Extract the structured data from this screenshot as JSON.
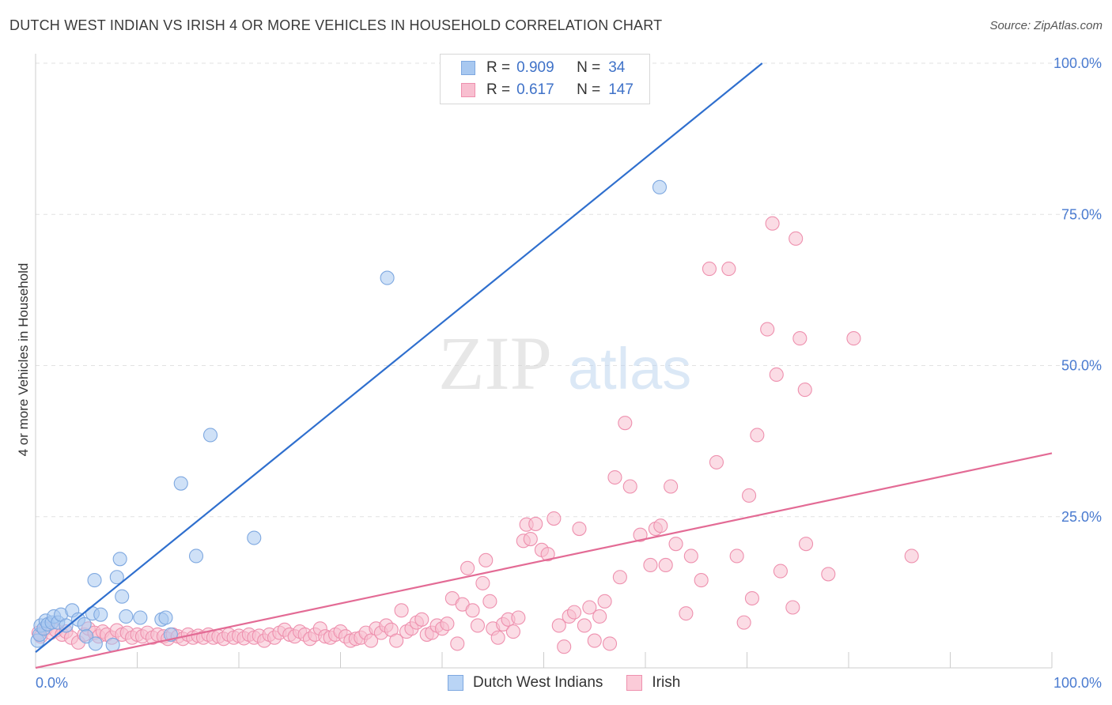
{
  "header": {
    "title": "DUTCH WEST INDIAN VS IRISH 4 OR MORE VEHICLES IN HOUSEHOLD CORRELATION CHART",
    "source": "Source: ZipAtlas.com"
  },
  "watermark": {
    "zip": "ZIP",
    "atlas": "atlas"
  },
  "legend": {
    "rows": [
      {
        "r_label": "R =",
        "r_value": "0.909",
        "n_label": "N =",
        "n_value": "34",
        "color": "#a8c8f0",
        "border": "#7ea8e0"
      },
      {
        "r_label": "R =",
        "r_value": "0.617",
        "n_label": "N =",
        "n_value": "147",
        "color": "#f8bfd0",
        "border": "#ee90ae"
      }
    ]
  },
  "bottom_legend": {
    "items": [
      {
        "label": "Dutch West Indians",
        "color": "#b9d4f5",
        "border": "#7ea8e0"
      },
      {
        "label": "Irish",
        "color": "#fbcbd8",
        "border": "#ee90ae"
      }
    ]
  },
  "chart_data": {
    "type": "scatter",
    "title": "DUTCH WEST INDIAN VS IRISH 4 OR MORE VEHICLES IN HOUSEHOLD CORRELATION CHART",
    "ylabel": "4 or more Vehicles in Household",
    "xlim": [
      0,
      100
    ],
    "ylim": [
      0,
      100
    ],
    "x_tick_labels": [
      "0.0%",
      "100.0%"
    ],
    "y_ticks": [
      25,
      50,
      75,
      100
    ],
    "y_tick_labels": [
      "25.0%",
      "50.0%",
      "75.0%",
      "100.0%"
    ],
    "grid": true,
    "series": [
      {
        "name": "Dutch West Indians",
        "color": "#a8c8f0",
        "stroke": "#7ea8e0",
        "line_color": "#2f6fce",
        "trend": {
          "x": [
            0,
            71.5
          ],
          "y": [
            2.6,
            100
          ]
        },
        "points": [
          [
            0.2,
            4.5
          ],
          [
            0.4,
            5.5
          ],
          [
            0.5,
            7.0
          ],
          [
            0.8,
            6.5
          ],
          [
            1.0,
            7.8
          ],
          [
            1.2,
            7.2
          ],
          [
            1.6,
            7.5
          ],
          [
            1.8,
            8.5
          ],
          [
            2.2,
            7.5
          ],
          [
            2.5,
            8.8
          ],
          [
            3.0,
            7.0
          ],
          [
            3.6,
            9.5
          ],
          [
            4.2,
            8.0
          ],
          [
            4.8,
            7.2
          ],
          [
            5.0,
            5.2
          ],
          [
            5.6,
            9.0
          ],
          [
            5.8,
            14.5
          ],
          [
            6.4,
            8.8
          ],
          [
            5.9,
            4.0
          ],
          [
            7.6,
            3.8
          ],
          [
            8.0,
            15.0
          ],
          [
            8.3,
            18.0
          ],
          [
            8.5,
            11.8
          ],
          [
            8.9,
            8.5
          ],
          [
            10.3,
            8.3
          ],
          [
            12.4,
            8.0
          ],
          [
            12.8,
            8.3
          ],
          [
            13.3,
            5.5
          ],
          [
            14.3,
            30.5
          ],
          [
            15.8,
            18.5
          ],
          [
            17.2,
            38.5
          ],
          [
            21.5,
            21.5
          ],
          [
            34.6,
            64.5
          ],
          [
            61.4,
            79.5
          ]
        ]
      },
      {
        "name": "Irish",
        "color": "#f8bfd0",
        "stroke": "#ee90ae",
        "line_color": "#e36b95",
        "trend": {
          "x": [
            0,
            100
          ],
          "y": [
            0,
            35.5
          ]
        },
        "points": [
          [
            0.3,
            5.8
          ],
          [
            0.5,
            5.2
          ],
          [
            1.0,
            6.5
          ],
          [
            1.5,
            5.8
          ],
          [
            2.0,
            6.2
          ],
          [
            2.6,
            5.5
          ],
          [
            3.0,
            6.0
          ],
          [
            3.5,
            5.0
          ],
          [
            4.2,
            4.2
          ],
          [
            4.8,
            5.5
          ],
          [
            5.2,
            6.5
          ],
          [
            5.8,
            5.8
          ],
          [
            6.2,
            5.2
          ],
          [
            6.6,
            6.0
          ],
          [
            7.0,
            5.5
          ],
          [
            7.5,
            5.0
          ],
          [
            8.0,
            6.2
          ],
          [
            8.5,
            5.5
          ],
          [
            9.0,
            5.8
          ],
          [
            9.5,
            5.0
          ],
          [
            10.0,
            5.5
          ],
          [
            10.5,
            5.2
          ],
          [
            11.0,
            5.8
          ],
          [
            11.5,
            5.0
          ],
          [
            12.0,
            5.5
          ],
          [
            12.6,
            5.2
          ],
          [
            13.0,
            4.8
          ],
          [
            13.5,
            5.5
          ],
          [
            14.0,
            5.2
          ],
          [
            14.5,
            4.8
          ],
          [
            15.0,
            5.5
          ],
          [
            15.5,
            5.0
          ],
          [
            16.0,
            5.3
          ],
          [
            16.5,
            5.0
          ],
          [
            17.0,
            5.5
          ],
          [
            17.5,
            5.0
          ],
          [
            18.0,
            5.2
          ],
          [
            18.5,
            4.8
          ],
          [
            19.0,
            5.5
          ],
          [
            19.5,
            5.0
          ],
          [
            20.0,
            5.3
          ],
          [
            20.5,
            4.9
          ],
          [
            21.0,
            5.5
          ],
          [
            21.5,
            5.0
          ],
          [
            22.0,
            5.3
          ],
          [
            22.5,
            4.5
          ],
          [
            23.0,
            5.5
          ],
          [
            23.5,
            5.0
          ],
          [
            24.0,
            5.8
          ],
          [
            24.5,
            6.3
          ],
          [
            25.0,
            5.5
          ],
          [
            25.5,
            5.2
          ],
          [
            26.0,
            6.0
          ],
          [
            26.5,
            5.5
          ],
          [
            27.0,
            4.8
          ],
          [
            27.5,
            5.5
          ],
          [
            28.0,
            6.5
          ],
          [
            28.5,
            5.2
          ],
          [
            29.0,
            5.0
          ],
          [
            29.5,
            5.5
          ],
          [
            30.0,
            6.0
          ],
          [
            30.5,
            5.2
          ],
          [
            31.0,
            4.5
          ],
          [
            31.5,
            4.8
          ],
          [
            32.0,
            5.0
          ],
          [
            32.5,
            5.8
          ],
          [
            33.0,
            4.5
          ],
          [
            33.5,
            6.5
          ],
          [
            34.0,
            5.8
          ],
          [
            34.5,
            7.0
          ],
          [
            35.0,
            6.3
          ],
          [
            35.5,
            4.5
          ],
          [
            36.0,
            9.5
          ],
          [
            36.5,
            6.0
          ],
          [
            37.0,
            6.5
          ],
          [
            37.5,
            7.5
          ],
          [
            38.0,
            8.0
          ],
          [
            38.5,
            5.5
          ],
          [
            39.0,
            5.8
          ],
          [
            39.5,
            7.0
          ],
          [
            40.0,
            6.5
          ],
          [
            40.5,
            7.3
          ],
          [
            41.0,
            11.5
          ],
          [
            41.5,
            4.0
          ],
          [
            42.0,
            10.5
          ],
          [
            42.5,
            16.5
          ],
          [
            43.0,
            9.5
          ],
          [
            43.5,
            7.0
          ],
          [
            44.0,
            14.0
          ],
          [
            44.3,
            17.8
          ],
          [
            44.7,
            11.0
          ],
          [
            45.0,
            6.5
          ],
          [
            45.5,
            5.0
          ],
          [
            46.0,
            7.2
          ],
          [
            46.5,
            8.0
          ],
          [
            47.0,
            6.0
          ],
          [
            47.5,
            8.3
          ],
          [
            48.0,
            21.0
          ],
          [
            48.3,
            23.7
          ],
          [
            48.7,
            21.3
          ],
          [
            49.2,
            23.8
          ],
          [
            49.8,
            19.5
          ],
          [
            50.4,
            18.8
          ],
          [
            51.0,
            24.7
          ],
          [
            51.5,
            7.0
          ],
          [
            52.0,
            3.5
          ],
          [
            52.5,
            8.5
          ],
          [
            53.0,
            9.2
          ],
          [
            53.5,
            23.0
          ],
          [
            54.0,
            7.0
          ],
          [
            54.5,
            10.0
          ],
          [
            55.0,
            4.5
          ],
          [
            55.5,
            8.5
          ],
          [
            56.0,
            11.0
          ],
          [
            56.5,
            4.0
          ],
          [
            57.0,
            31.5
          ],
          [
            57.5,
            15.0
          ],
          [
            58.0,
            40.5
          ],
          [
            58.5,
            30.0
          ],
          [
            59.5,
            22.0
          ],
          [
            60.5,
            17.0
          ],
          [
            61.0,
            23.0
          ],
          [
            61.5,
            23.5
          ],
          [
            62.0,
            17.0
          ],
          [
            62.5,
            30.0
          ],
          [
            63.0,
            20.5
          ],
          [
            64.0,
            9.0
          ],
          [
            64.5,
            18.5
          ],
          [
            65.5,
            14.5
          ],
          [
            66.3,
            66.0
          ],
          [
            67.0,
            34.0
          ],
          [
            68.2,
            66.0
          ],
          [
            69.0,
            18.5
          ],
          [
            69.7,
            7.5
          ],
          [
            70.2,
            28.5
          ],
          [
            70.5,
            11.5
          ],
          [
            71.0,
            38.5
          ],
          [
            72.5,
            73.5
          ],
          [
            72.9,
            48.5
          ],
          [
            73.3,
            16.0
          ],
          [
            74.8,
            71.0
          ],
          [
            75.2,
            54.5
          ],
          [
            75.7,
            46.0
          ],
          [
            74.5,
            10.0
          ],
          [
            75.8,
            20.5
          ],
          [
            78.0,
            15.5
          ],
          [
            80.5,
            54.5
          ],
          [
            86.2,
            18.5
          ],
          [
            72.0,
            56.0
          ]
        ]
      }
    ]
  }
}
